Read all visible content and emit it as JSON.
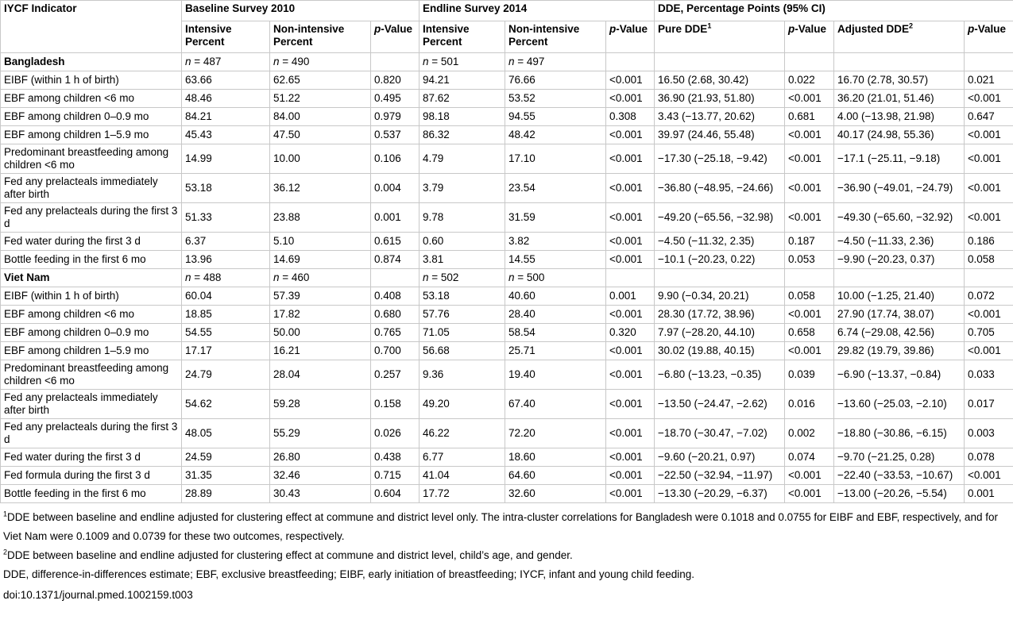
{
  "header": {
    "indicator": "IYCF Indicator",
    "groups": {
      "baseline": "Baseline Survey 2010",
      "endline": "Endline Survey 2014",
      "dde": "DDE, Percentage Points (95% CI)"
    },
    "sub": {
      "intensive": "Intensive Percent",
      "nonintensive": "Non-intensive Percent",
      "pvalue": "p-Value",
      "pure_dde": "Pure DDE",
      "pure_dde_sup": "1",
      "adj_dde": "Adjusted DDE",
      "adj_dde_sup": "2"
    }
  },
  "sections": [
    {
      "name": "Bangladesh",
      "n": [
        "n = 487",
        "n = 490",
        "n = 501",
        "n = 497"
      ],
      "rows": [
        [
          "EIBF (within 1 h of birth)",
          "63.66",
          "62.65",
          "0.820",
          "94.21",
          "76.66",
          "<0.001",
          "16.50 (2.68, 30.42)",
          "0.022",
          "16.70 (2.78, 30.57)",
          "0.021"
        ],
        [
          "EBF among children <6 mo",
          "48.46",
          "51.22",
          "0.495",
          "87.62",
          "53.52",
          "<0.001",
          "36.90 (21.93, 51.80)",
          "<0.001",
          "36.20 (21.01, 51.46)",
          "<0.001"
        ],
        [
          "EBF among children 0–0.9 mo",
          "84.21",
          "84.00",
          "0.979",
          "98.18",
          "94.55",
          "0.308",
          "3.43 (−13.77, 20.62)",
          "0.681",
          "4.00 (−13.98, 21.98)",
          "0.647"
        ],
        [
          "EBF among children 1–5.9 mo",
          "45.43",
          "47.50",
          "0.537",
          "86.32",
          "48.42",
          "<0.001",
          "39.97 (24.46, 55.48)",
          "<0.001",
          "40.17 (24.98, 55.36)",
          "<0.001"
        ],
        [
          "Predominant breastfeeding among children <6 mo",
          "14.99",
          "10.00",
          "0.106",
          "4.79",
          "17.10",
          "<0.001",
          "−17.30 (−25.18, −9.42)",
          "<0.001",
          "−17.1 (−25.11, −9.18)",
          "<0.001"
        ],
        [
          "Fed any prelacteals immediately after birth",
          "53.18",
          "36.12",
          "0.004",
          "3.79",
          "23.54",
          "<0.001",
          "−36.80 (−48.95, −24.66)",
          "<0.001",
          "−36.90 (−49.01, −24.79)",
          "<0.001"
        ],
        [
          "Fed any prelacteals during the first 3 d",
          "51.33",
          "23.88",
          "0.001",
          "9.78",
          "31.59",
          "<0.001",
          "−49.20 (−65.56, −32.98)",
          "<0.001",
          "−49.30 (−65.60, −32.92)",
          "<0.001"
        ],
        [
          "Fed water during the first 3 d",
          "6.37",
          "5.10",
          "0.615",
          "0.60",
          "3.82",
          "<0.001",
          "−4.50 (−11.32, 2.35)",
          "0.187",
          "−4.50 (−11.33, 2.36)",
          "0.186"
        ],
        [
          "Bottle feeding in the first 6 mo",
          "13.96",
          "14.69",
          "0.874",
          "3.81",
          "14.55",
          "<0.001",
          "−10.1 (−20.23, 0.22)",
          "0.053",
          "−9.90 (−20.23, 0.37)",
          "0.058"
        ]
      ]
    },
    {
      "name": "Viet Nam",
      "n": [
        "n = 488",
        "n = 460",
        "n = 502",
        "n = 500"
      ],
      "rows": [
        [
          "EIBF (within 1 h of birth)",
          "60.04",
          "57.39",
          "0.408",
          "53.18",
          "40.60",
          "0.001",
          "9.90 (−0.34, 20.21)",
          "0.058",
          "10.00 (−1.25, 21.40)",
          "0.072"
        ],
        [
          "EBF among children <6 mo",
          "18.85",
          "17.82",
          "0.680",
          "57.76",
          "28.40",
          "<0.001",
          "28.30 (17.72, 38.96)",
          "<0.001",
          "27.90 (17.74, 38.07)",
          "<0.001"
        ],
        [
          "EBF among children 0–0.9 mo",
          "54.55",
          "50.00",
          "0.765",
          "71.05",
          "58.54",
          "0.320",
          "7.97 (−28.20, 44.10)",
          "0.658",
          "6.74 (−29.08, 42.56)",
          "0.705"
        ],
        [
          "EBF among children 1–5.9 mo",
          "17.17",
          "16.21",
          "0.700",
          "56.68",
          "25.71",
          "<0.001",
          "30.02 (19.88, 40.15)",
          "<0.001",
          "29.82 (19.79, 39.86)",
          "<0.001"
        ],
        [
          "Predominant breastfeeding among children <6 mo",
          "24.79",
          "28.04",
          "0.257",
          "9.36",
          "19.40",
          "<0.001",
          "−6.80 (−13.23, −0.35)",
          "0.039",
          "−6.90 (−13.37, −0.84)",
          "0.033"
        ],
        [
          "Fed any prelacteals immediately after birth",
          "54.62",
          "59.28",
          "0.158",
          "49.20",
          "67.40",
          "<0.001",
          "−13.50 (−24.47, −2.62)",
          "0.016",
          "−13.60 (−25.03, −2.10)",
          "0.017"
        ],
        [
          "Fed any prelacteals during the first 3 d",
          "48.05",
          "55.29",
          "0.026",
          "46.22",
          "72.20",
          "<0.001",
          "−18.70 (−30.47, −7.02)",
          "0.002",
          "−18.80 (−30.86, −6.15)",
          "0.003"
        ],
        [
          "Fed water during the first 3 d",
          "24.59",
          "26.80",
          "0.438",
          "6.77",
          "18.60",
          "<0.001",
          "−9.60 (−20.21, 0.97)",
          "0.074",
          "−9.70 (−21.25, 0.28)",
          "0.078"
        ],
        [
          "Fed formula during the first 3 d",
          "31.35",
          "32.46",
          "0.715",
          "41.04",
          "64.60",
          "<0.001",
          "−22.50 (−32.94, −11.97)",
          "<0.001",
          "−22.40 (−33.53, −10.67)",
          "<0.001"
        ],
        [
          "Bottle feeding in the first 6 mo",
          "28.89",
          "30.43",
          "0.604",
          "17.72",
          "32.60",
          "<0.001",
          "−13.30 (−20.29, −6.37)",
          "<0.001",
          "−13.00 (−20.26, −5.54)",
          "0.001"
        ]
      ]
    }
  ],
  "footnotes": {
    "note1_sup": "1",
    "note1": "DDE between baseline and endline adjusted for clustering effect at commune and district level only. The intra-cluster correlations for Bangladesh were 0.1018 and 0.0755 for EIBF and EBF, respectively, and for Viet Nam were 0.1009 and 0.0739 for these two outcomes, respectively.",
    "note2_sup": "2",
    "note2": "DDE between baseline and endline adjusted for clustering effect at commune and district level, child’s age, and gender.",
    "abbrev": "DDE, difference-in-differences estimate; EBF, exclusive breastfeeding; EIBF, early initiation of breastfeeding; IYCF, infant and young child feeding.",
    "doi": "doi:10.1371/journal.pmed.1002159.t003"
  }
}
